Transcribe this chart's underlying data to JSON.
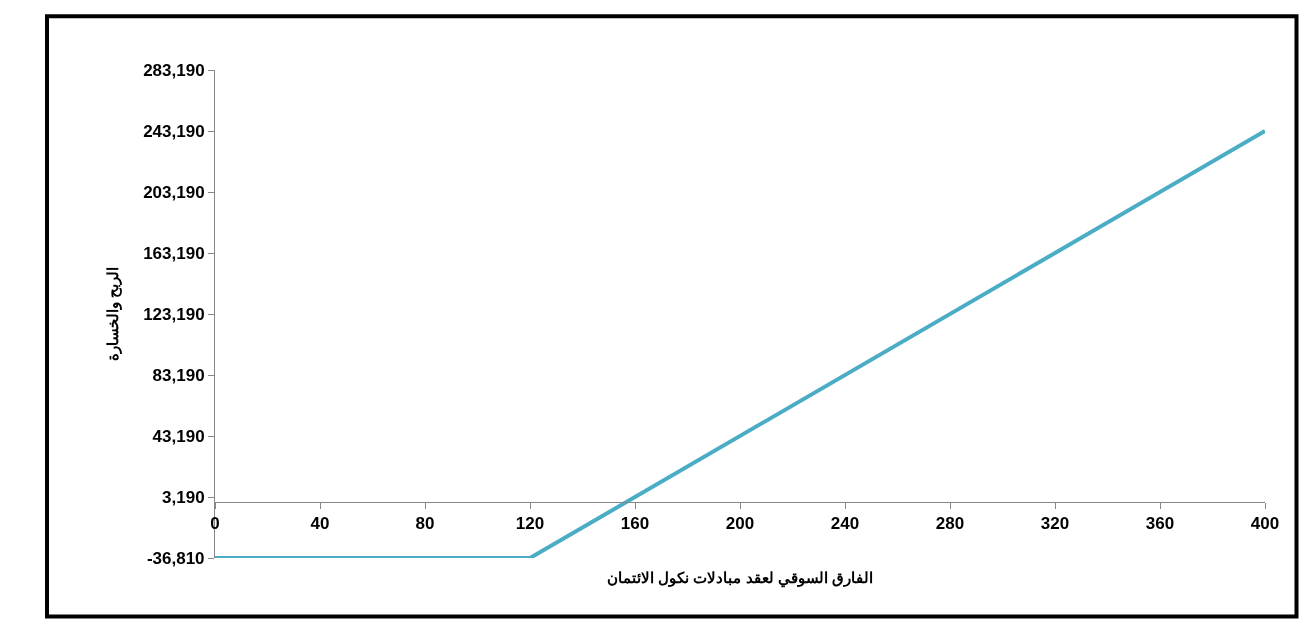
{
  "chart_data": {
    "type": "line",
    "xlabel": "الفارق السوقي لعقد مبادلات نكول الائتمان",
    "ylabel": "الربح والخسارة",
    "x": [
      0,
      120,
      400
    ],
    "series": [
      {
        "color": "#4bacc6",
        "values": [
          -36810,
          -36810,
          243190
        ]
      }
    ],
    "xlim": [
      0,
      400
    ],
    "xticks": [
      0,
      40,
      80,
      120,
      160,
      200,
      240,
      280,
      320,
      360,
      400
    ],
    "ylim": [
      -36810,
      283190
    ],
    "yticks": [
      {
        "value": -36810,
        "label": "-36,810"
      },
      {
        "value": 3190,
        "label": "3,190"
      },
      {
        "value": 43190,
        "label": "43,190"
      },
      {
        "value": 83190,
        "label": "83,190"
      },
      {
        "value": 123190,
        "label": "123,190"
      },
      {
        "value": 163190,
        "label": "163,190"
      },
      {
        "value": 203190,
        "label": "203,190"
      },
      {
        "value": 243190,
        "label": "243,190"
      },
      {
        "value": 283190,
        "label": "283,190"
      }
    ],
    "marker": "none",
    "line_style": "solid"
  }
}
